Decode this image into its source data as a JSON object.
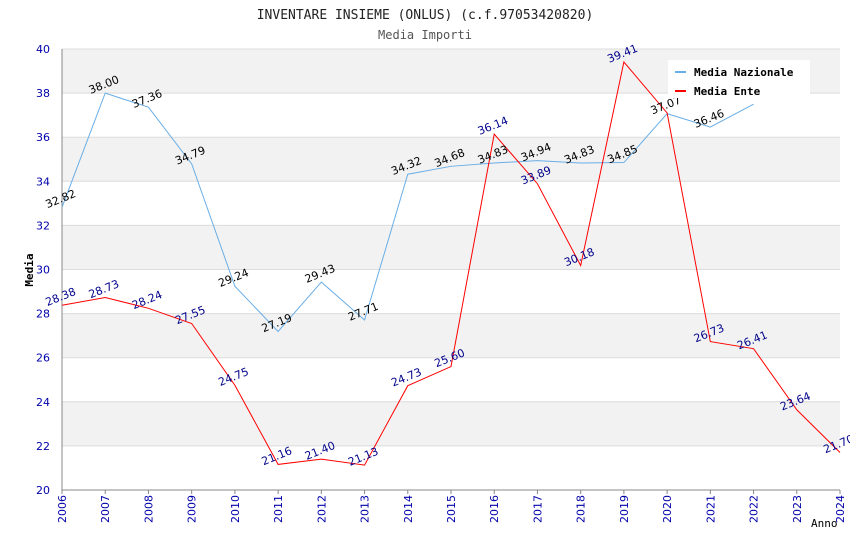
{
  "header": {
    "title": "INVENTARE INSIEME (ONLUS) (c.f.97053420820)",
    "subtitle": "Media Importi"
  },
  "chart_data": {
    "type": "line",
    "title": "INVENTARE INSIEME (ONLUS) (c.f.97053420820)",
    "subtitle": "Media Importi",
    "xlabel": "Anno",
    "ylabel": "Media",
    "ylim": [
      20,
      40
    ],
    "yticks": [
      20,
      22,
      24,
      26,
      28,
      30,
      32,
      34,
      36,
      38,
      40
    ],
    "categories": [
      "2006",
      "2007",
      "2008",
      "2009",
      "2010",
      "2011",
      "2012",
      "2013",
      "2014",
      "2015",
      "2016",
      "2017",
      "2018",
      "2019",
      "2020",
      "2021",
      "2022",
      "2023",
      "2024"
    ],
    "legend_position": "top-right",
    "series": [
      {
        "name": "Media Nazionale",
        "color": "#6aaee6",
        "label_color": "#000000",
        "values": [
          32.82,
          38.0,
          37.36,
          34.79,
          29.24,
          27.19,
          29.43,
          27.71,
          34.32,
          34.68,
          34.83,
          34.94,
          34.83,
          34.85,
          37.07,
          36.46,
          37.5,
          null,
          null
        ],
        "labels": [
          "32.82",
          "38.00",
          "37.36",
          "34.79",
          "29.24",
          "27.19",
          "29.43",
          "27.71",
          "34.32",
          "34.68",
          "34.83",
          "34.94",
          "34.83",
          "34.85",
          "37.07",
          "36.46",
          "",
          null,
          null
        ]
      },
      {
        "name": "Media Ente",
        "color": "#ff0000",
        "label_color": "#00008b",
        "values": [
          28.38,
          28.73,
          28.24,
          27.55,
          24.75,
          21.16,
          21.4,
          21.13,
          24.73,
          25.6,
          36.14,
          33.89,
          30.18,
          39.41,
          37.1,
          26.73,
          26.41,
          23.64,
          21.7
        ],
        "labels": [
          "28.38",
          "28.73",
          "28.24",
          "27.55",
          "24.75",
          "21.16",
          "21.40",
          "21.13",
          "24.73",
          "25.60",
          "36.14",
          "33.89",
          "30.18",
          "39.41",
          "",
          "26.73",
          "26.41",
          "23.64",
          "21.70"
        ]
      }
    ]
  }
}
